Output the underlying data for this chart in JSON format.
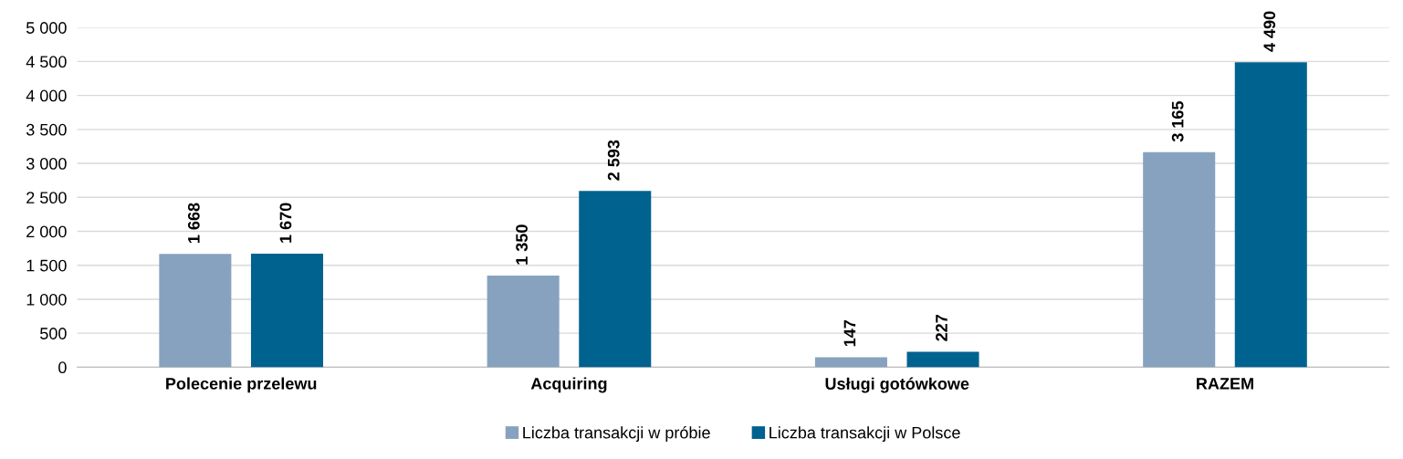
{
  "chart_data": {
    "type": "bar",
    "categories": [
      "Polecenie przelewu",
      "Acquiring",
      "Usługi gotówkowe",
      "RAZEM"
    ],
    "series": [
      {
        "name": "Liczba transakcji w próbie",
        "color": "#87a2bf",
        "values": [
          1668,
          1350,
          147,
          3165
        ],
        "value_labels": [
          "1 668",
          "1 350",
          "147",
          "3 165"
        ]
      },
      {
        "name": "Liczba transakcji w Polsce",
        "color": "#00628f",
        "values": [
          1670,
          2593,
          227,
          4490
        ],
        "value_labels": [
          "1 670",
          "2 593",
          "227",
          "4 490"
        ]
      }
    ],
    "ylim": [
      0,
      5000
    ],
    "yticks": [
      {
        "value": 0,
        "label": "0"
      },
      {
        "value": 500,
        "label": "500"
      },
      {
        "value": 1000,
        "label": "1 000"
      },
      {
        "value": 1500,
        "label": "1 500"
      },
      {
        "value": 2000,
        "label": "2 000"
      },
      {
        "value": 2500,
        "label": "2 500"
      },
      {
        "value": 3000,
        "label": "3 000"
      },
      {
        "value": 3500,
        "label": "3 500"
      },
      {
        "value": 4000,
        "label": "4 000"
      },
      {
        "value": 4500,
        "label": "4 500"
      },
      {
        "value": 5000,
        "label": "5 000"
      }
    ],
    "grid": "y",
    "legend": "bottom"
  }
}
